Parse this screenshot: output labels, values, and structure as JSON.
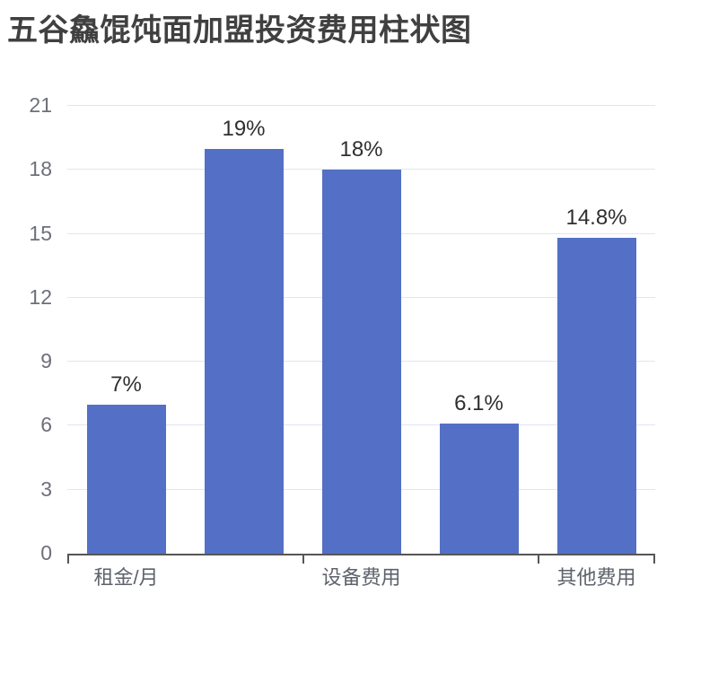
{
  "chart_data": {
    "type": "bar",
    "title": "五谷鱻馄饨面加盟投资费用柱状图",
    "values": [
      7,
      19,
      18,
      6.1,
      14.8
    ],
    "bar_labels": [
      "7%",
      "19%",
      "18%",
      "6.1%",
      "14.8%"
    ],
    "x_tick_labels": [
      {
        "text": "租金/月",
        "band_index": 0
      },
      {
        "text": "设备费用",
        "band_index": 2
      },
      {
        "text": "其他费用",
        "band_index": 4
      }
    ],
    "y_ticks": [
      0,
      3,
      6,
      9,
      12,
      15,
      18,
      21
    ],
    "ylim": [
      0,
      21
    ],
    "grid": true,
    "legend": "none",
    "colors": {
      "bar": "#5470C6",
      "gridline": "#E0E6F1",
      "axis_line": "#565656",
      "y_label": "#6E7079",
      "x_label": "#5E626B",
      "bar_label": "#2F2F2F",
      "title": "#404040"
    }
  }
}
